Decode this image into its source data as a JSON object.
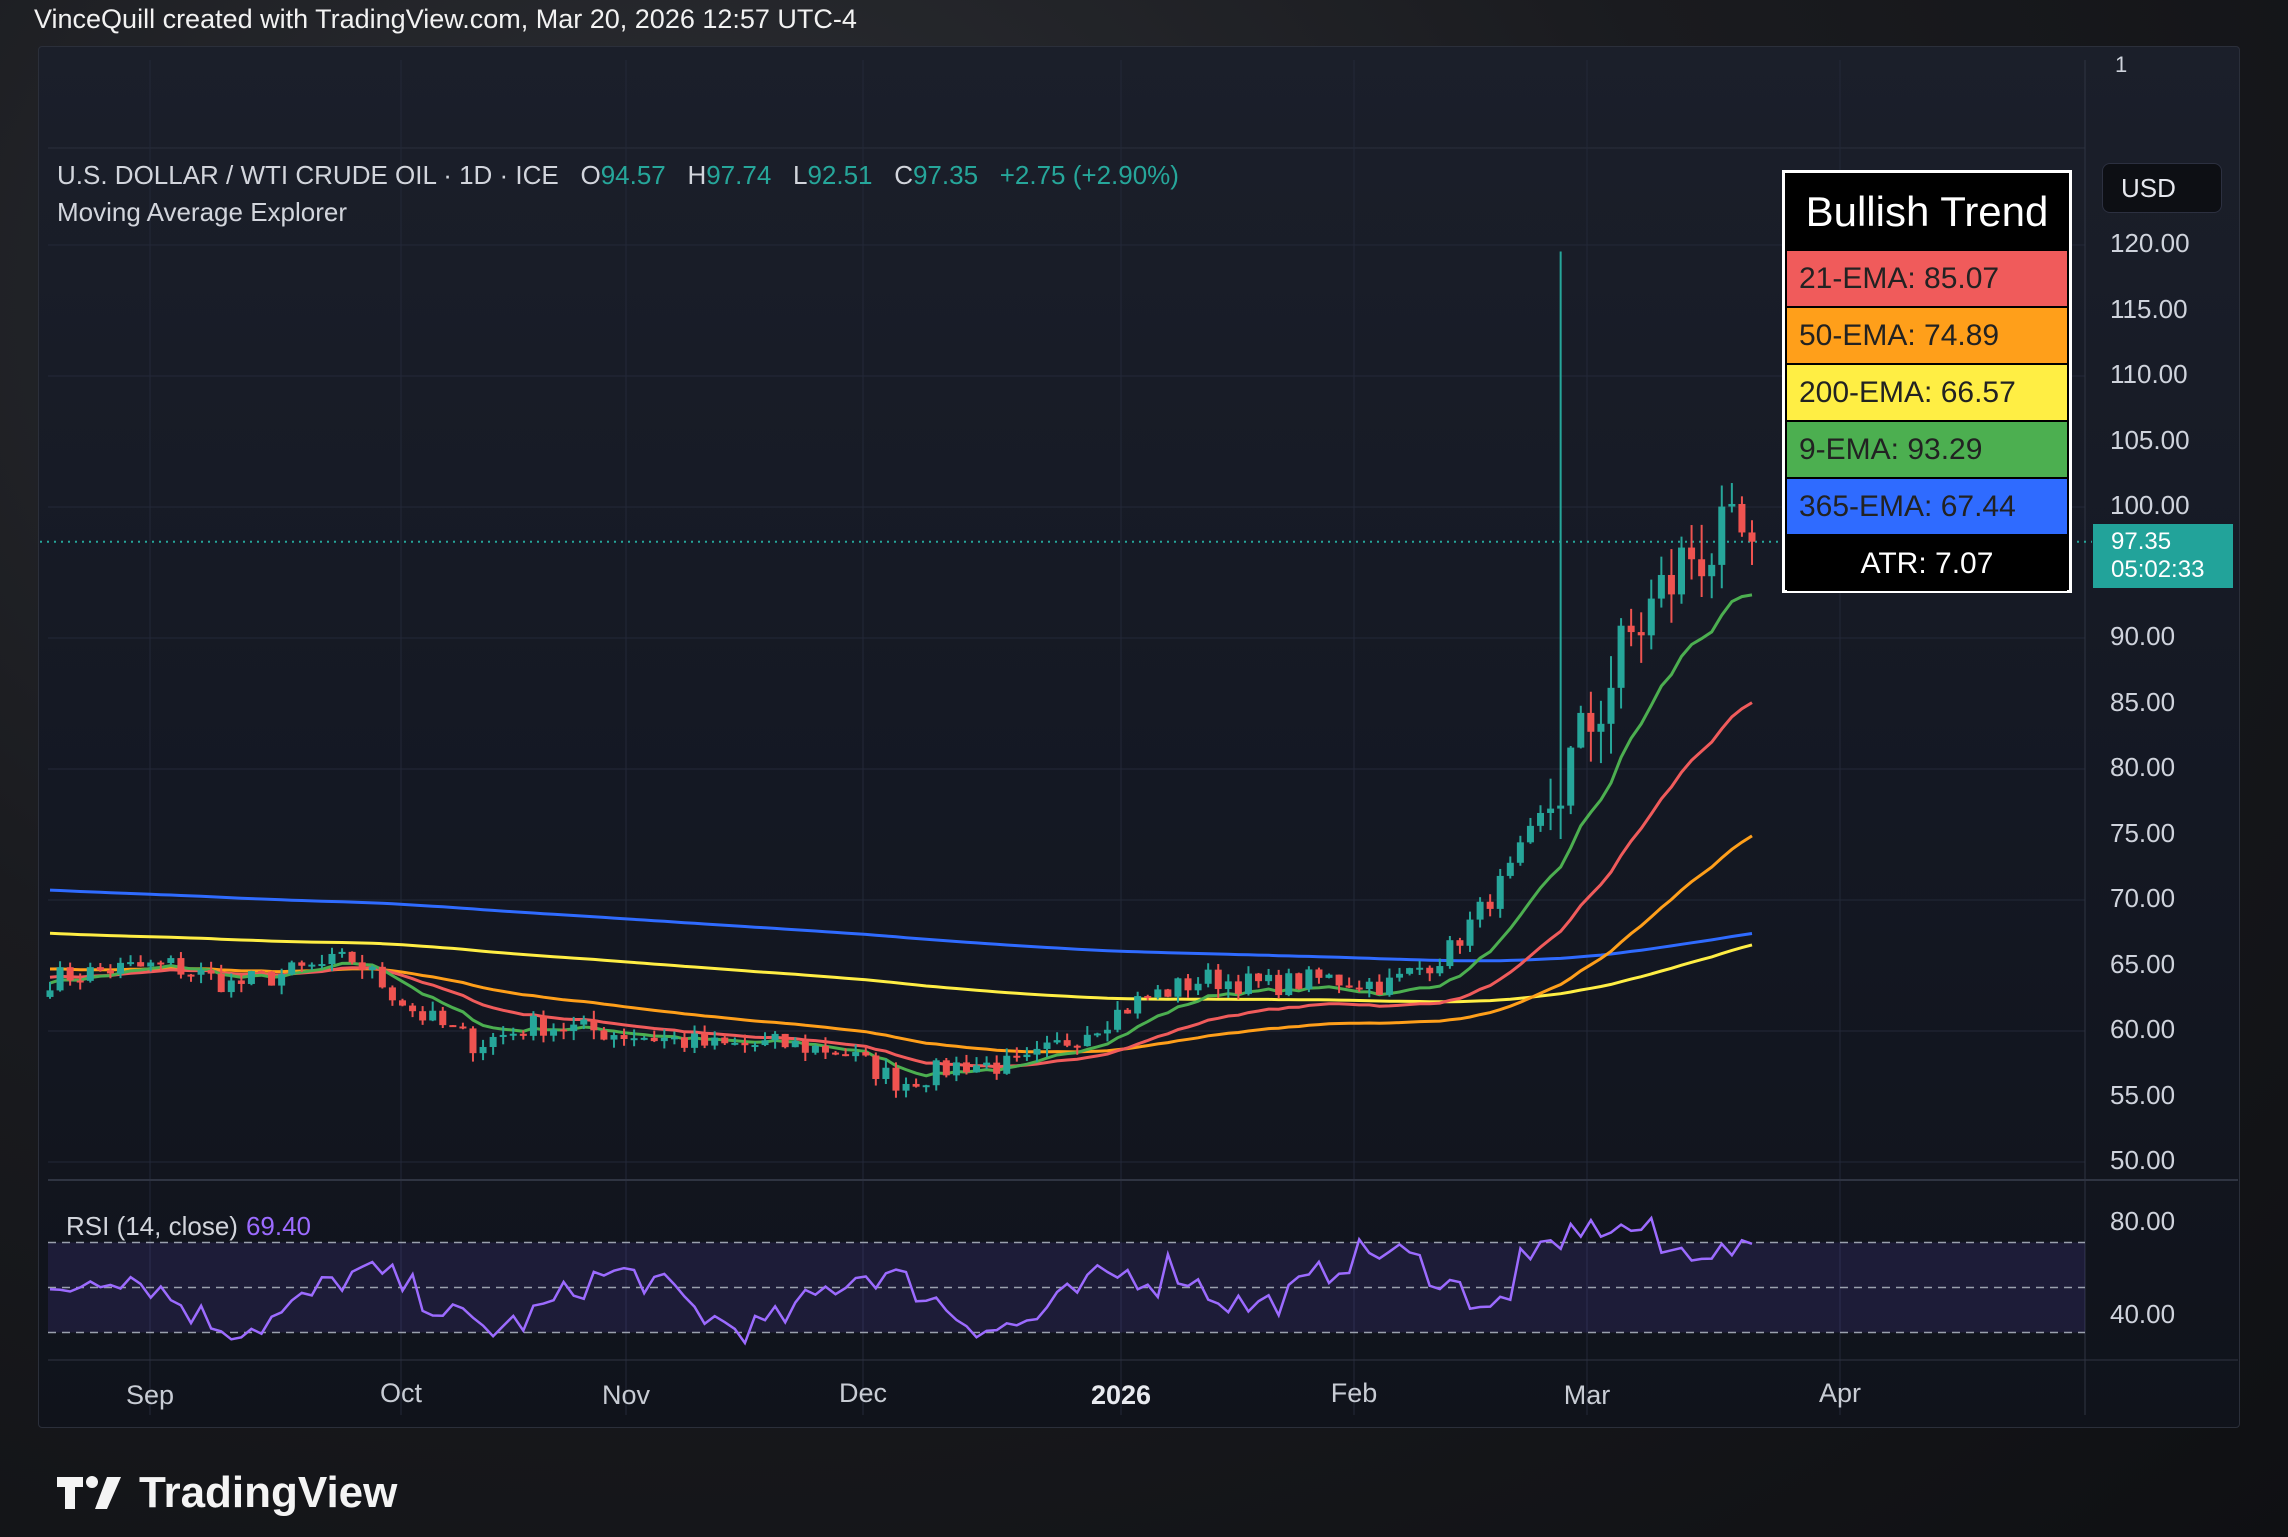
{
  "credit": "VinceQuill created with TradingView.com, Mar 20, 2026 12:57 UTC-4",
  "symbol": {
    "name": "U.S. DOLLAR / WTI CRUDE OIL · 1D · ICE",
    "o_label": "O",
    "o": "94.57",
    "h_label": "H",
    "h": "97.74",
    "l_label": "L",
    "l": "92.51",
    "c_label": "C",
    "c": "97.35",
    "change": "+2.75 (+2.90%)"
  },
  "indicator_name": "Moving Average Explorer",
  "pane_number": "1",
  "currency_button": "USD",
  "current_price": {
    "value": "97.35",
    "countdown": "05:02:33"
  },
  "y_axis_ticks": [
    "120.00",
    "115.00",
    "110.00",
    "105.00",
    "100.00",
    "90.00",
    "85.00",
    "80.00",
    "75.00",
    "70.00",
    "65.00",
    "60.00",
    "55.00",
    "50.00"
  ],
  "rsi": {
    "label": "RSI (14, close)",
    "value": "69.40",
    "ticks": [
      "80.00",
      "40.00"
    ]
  },
  "x_axis_ticks": [
    "Sep",
    "Oct",
    "Nov",
    "Dec",
    "2026",
    "Feb",
    "Mar",
    "Apr"
  ],
  "trend_box": {
    "title": "Bullish Trend",
    "rows": [
      {
        "label": "21-EMA: 85.07",
        "color": "#f05b5b"
      },
      {
        "label": "50-EMA: 74.89",
        "color": "#ff9f1a"
      },
      {
        "label": "200-EMA: 66.57",
        "color": "#ffee44"
      },
      {
        "label": "9-EMA: 93.29",
        "color": "#4caf50"
      },
      {
        "label": "365-EMA: 67.44",
        "color": "#2f6bff"
      }
    ],
    "atr": "ATR: 7.07"
  },
  "logo_text": "TradingView",
  "colors": {
    "up": "#26a69a",
    "down": "#ef5350",
    "ema9": "#4caf50",
    "ema21": "#f05b5b",
    "ema50": "#ff9f1a",
    "ema200": "#ffee44",
    "ema365": "#2f6bff",
    "rsi": "#9c6bff"
  },
  "chart_data": {
    "type": "line",
    "title": "U.S. DOLLAR / WTI CRUDE OIL · 1D · ICE",
    "ylim": [
      50,
      120
    ],
    "close_series": [
      [
        "Sep",
        64.0
      ],
      [
        "Sep",
        64.7
      ],
      [
        "Sep",
        65.0
      ],
      [
        "Sep",
        63.5
      ],
      [
        "Oct",
        64.5
      ],
      [
        "Oct",
        65.5
      ],
      [
        "Oct",
        61.5
      ],
      [
        "Oct",
        59.0
      ],
      [
        "Nov",
        60.5
      ],
      [
        "Nov",
        60.0
      ],
      [
        "Nov",
        59.5
      ],
      [
        "Nov",
        58.8
      ],
      [
        "Dec",
        59.0
      ],
      [
        "Dec",
        58.5
      ],
      [
        "Dec",
        56.0
      ],
      [
        "Dec",
        57.5
      ],
      [
        "2026",
        57.3
      ],
      [
        "2026",
        60.0
      ],
      [
        "2026",
        62.5
      ],
      [
        "2026",
        64.0
      ],
      [
        "Feb",
        63.5
      ],
      [
        "Feb",
        64.0
      ],
      [
        "Feb",
        63.5
      ],
      [
        "Feb",
        66.0
      ],
      [
        "Mar",
        72.0
      ],
      [
        "Mar",
        80.0
      ],
      [
        "Mar",
        90.0
      ],
      [
        "Mar",
        96.5
      ],
      [
        "Mar",
        97.35
      ]
    ],
    "ema_final": {
      "9-EMA": 93.29,
      "21-EMA": 85.07,
      "50-EMA": 74.89,
      "200-EMA": 66.57,
      "365-EMA": 67.44
    },
    "rsi_latest": 69.4
  }
}
